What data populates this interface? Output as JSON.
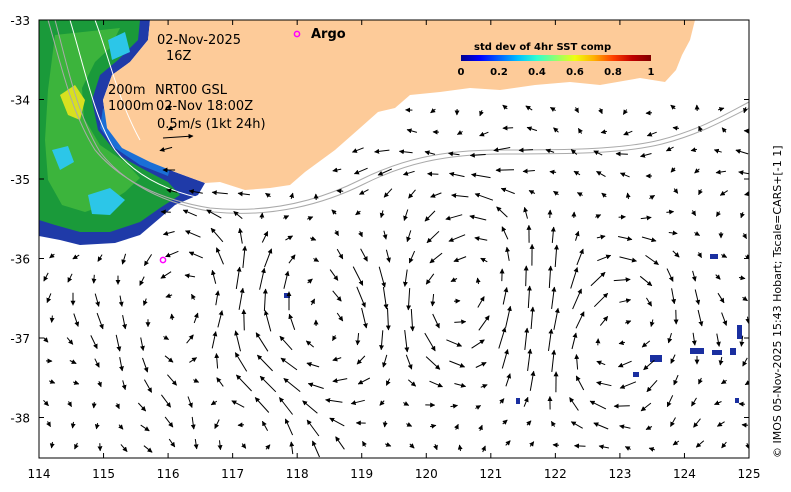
{
  "map": {
    "date_label": "02-Nov-2025",
    "time_label": "16Z",
    "depth_label_200": "200m",
    "depth_label_1000": "1000m",
    "product_label": "NRT00 GSL",
    "product_time": "02-Nov 18:00Z",
    "scale_label": "0.5m/s (1kt 24h)",
    "argo_label": "Argo",
    "credit": "© IMOS 05-Nov-2025 15:43 Hobart; Tscale=CARS+[-1 1]",
    "lon_ticks": [
      "114",
      "115",
      "116",
      "117",
      "118",
      "119",
      "120",
      "121",
      "122",
      "123",
      "124",
      "125"
    ],
    "lat_ticks": [
      "-33",
      "-34",
      "-35",
      "-36",
      "-37",
      "-38"
    ],
    "colors": {
      "land": "#FDCB99",
      "argo": "#FF00FF",
      "frame": "#000000"
    }
  },
  "colorbar": {
    "title": "std dev of 4hr SST comp",
    "ticks": [
      "0",
      "0.2",
      "0.4",
      "0.6",
      "0.8",
      "1"
    ],
    "colormap": [
      "#000090",
      "#0000FF",
      "#0060FF",
      "#00C0FF",
      "#30FFD0",
      "#90FF70",
      "#F0FF10",
      "#FFB000",
      "#FF4000",
      "#C00000",
      "#800000"
    ]
  }
}
